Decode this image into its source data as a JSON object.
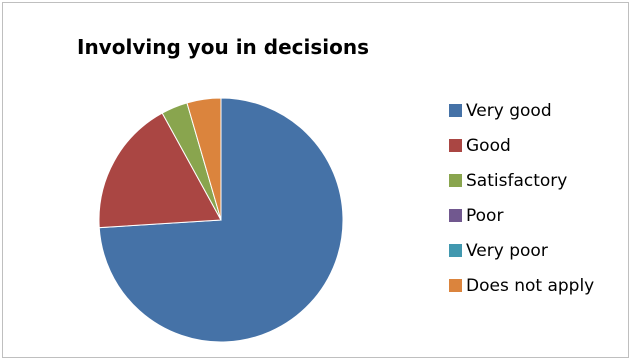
{
  "chart_data": {
    "type": "pie",
    "title": "Involving you in decisions",
    "legend_position": "right",
    "categories": [
      "Very good",
      "Good",
      "Satisfactory",
      "Poor",
      "Very poor",
      "Does not apply"
    ],
    "values": [
      74,
      18,
      3.5,
      0,
      0,
      4.5
    ],
    "colors": [
      "#4572A7",
      "#AA4643",
      "#89A54E",
      "#71588F",
      "#4198AF",
      "#DB843D"
    ],
    "start_angle_deg": 0,
    "direction": "clockwise"
  }
}
